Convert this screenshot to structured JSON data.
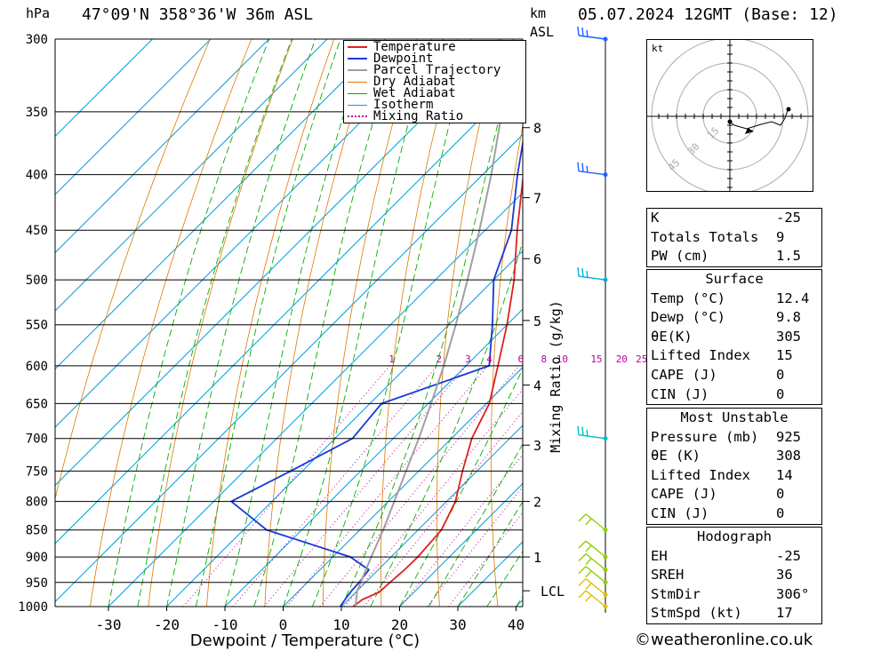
{
  "header": {
    "location": "47°09'N 358°36'W 36m ASL",
    "datetime": "05.07.2024 12GMT (Base: 12)",
    "hpa_unit": "hPa",
    "km_unit": "km",
    "asl_unit": "ASL"
  },
  "legend": [
    {
      "label": "Temperature",
      "color": "#e02020",
      "style": "solid"
    },
    {
      "label": "Dewpoint",
      "color": "#1838d8",
      "style": "solid"
    },
    {
      "label": "Parcel Trajectory",
      "color": "#a0a0a0",
      "style": "solid"
    },
    {
      "label": "Dry Adiabat",
      "color": "#e07800",
      "style": "solid"
    },
    {
      "label": "Wet Adiabat",
      "color": "#00b000",
      "style": "solid"
    },
    {
      "label": "Isotherm",
      "color": "#00a0e0",
      "style": "solid"
    },
    {
      "label": "Mixing Ratio",
      "color": "#c000a0",
      "style": "dotted"
    }
  ],
  "chart_data": {
    "type": "line",
    "subtype": "skew-t log-p",
    "xlabel": "Dewpoint / Temperature (°C)",
    "ylabel": "hPa",
    "secondary_ylabel": "Mixing Ratio (g/kg)",
    "xlim": [
      -40,
      40
    ],
    "ylim": [
      1000,
      300
    ],
    "x_ticks": [
      -30,
      -20,
      -10,
      0,
      10,
      20,
      30,
      40
    ],
    "pressure_ticks": [
      300,
      350,
      400,
      450,
      500,
      550,
      600,
      650,
      700,
      750,
      800,
      850,
      900,
      950,
      1000
    ],
    "km_ticks": [
      {
        "km": 1,
        "p": 900
      },
      {
        "km": 2,
        "p": 800
      },
      {
        "km": 3,
        "p": 710
      },
      {
        "km": 4,
        "p": 625
      },
      {
        "km": 5,
        "p": 545
      },
      {
        "km": 6,
        "p": 478
      },
      {
        "km": 7,
        "p": 420
      },
      {
        "km": 8,
        "p": 362
      }
    ],
    "lcl_label": "LCL",
    "lcl_pressure": 967,
    "mixing_ratio_labels": [
      "1",
      "2",
      "3",
      "4",
      "6",
      "8",
      "10",
      "15",
      "20",
      "25"
    ],
    "mixing_ratio_label_pressure": 600,
    "series": [
      {
        "name": "Temperature",
        "color": "#e02020",
        "points": [
          {
            "p": 1000,
            "t": 12.0
          },
          {
            "p": 985,
            "t": 12.4
          },
          {
            "p": 970,
            "t": 14.0
          },
          {
            "p": 950,
            "t": 14.2
          },
          {
            "p": 925,
            "t": 14.5
          },
          {
            "p": 900,
            "t": 14.6
          },
          {
            "p": 850,
            "t": 14.0
          },
          {
            "p": 800,
            "t": 11.5
          },
          {
            "p": 750,
            "t": 7.5
          },
          {
            "p": 700,
            "t": 3.5
          },
          {
            "p": 650,
            "t": 0.5
          },
          {
            "p": 600,
            "t": -4.5
          },
          {
            "p": 550,
            "t": -10.0
          },
          {
            "p": 500,
            "t": -16.5
          },
          {
            "p": 450,
            "t": -24.5
          },
          {
            "p": 400,
            "t": -33.0
          }
        ]
      },
      {
        "name": "Dewpoint",
        "color": "#1838d8",
        "points": [
          {
            "p": 1000,
            "t": 9.8
          },
          {
            "p": 985,
            "t": 9.4
          },
          {
            "p": 965,
            "t": 9.0
          },
          {
            "p": 950,
            "t": 8.9
          },
          {
            "p": 925,
            "t": 8.4
          },
          {
            "p": 900,
            "t": 3.0
          },
          {
            "p": 850,
            "t": -16.0
          },
          {
            "p": 800,
            "t": -27.0
          },
          {
            "p": 750,
            "t": -22.0
          },
          {
            "p": 700,
            "t": -17.0
          },
          {
            "p": 650,
            "t": -18.0
          },
          {
            "p": 600,
            "t": -6.0
          },
          {
            "p": 550,
            "t": -12.5
          },
          {
            "p": 500,
            "t": -20.0
          },
          {
            "p": 450,
            "t": -25.5
          },
          {
            "p": 400,
            "t": -34.0
          },
          {
            "p": 350,
            "t": -43.0
          },
          {
            "p": 300,
            "t": -53.0
          }
        ]
      },
      {
        "name": "Parcel Trajectory",
        "color": "#a0a0a0",
        "points": [
          {
            "p": 1000,
            "t": 12.4
          },
          {
            "p": 967,
            "t": 10.0
          },
          {
            "p": 900,
            "t": 6.6
          },
          {
            "p": 850,
            "t": 4.0
          },
          {
            "p": 800,
            "t": 1.0
          },
          {
            "p": 750,
            "t": -2.2
          },
          {
            "p": 700,
            "t": -5.6
          },
          {
            "p": 650,
            "t": -9.5
          },
          {
            "p": 600,
            "t": -13.8
          },
          {
            "p": 550,
            "t": -18.8
          },
          {
            "p": 500,
            "t": -24.5
          },
          {
            "p": 450,
            "t": -31.0
          },
          {
            "p": 400,
            "t": -38.5
          },
          {
            "p": 350,
            "t": -47.5
          },
          {
            "p": 300,
            "t": -58.0
          }
        ]
      }
    ],
    "wind_barb_pressures": [
      1000,
      975,
      950,
      925,
      900,
      850,
      700,
      500,
      400,
      300
    ]
  },
  "hodograph": {
    "unit_label": "kt",
    "ring_labels": [
      "15",
      "30",
      "45"
    ]
  },
  "indices": {
    "rows": [
      {
        "label": "K",
        "value": "-25"
      },
      {
        "label": "Totals Totals",
        "value": "9"
      },
      {
        "label": "PW (cm)",
        "value": "1.5"
      }
    ]
  },
  "surface": {
    "title": "Surface",
    "rows": [
      {
        "label": "Temp (°C)",
        "value": "12.4"
      },
      {
        "label": "Dewp (°C)",
        "value": "9.8"
      },
      {
        "label": "θE(K)",
        "value": "305"
      },
      {
        "label": "Lifted Index",
        "value": "15"
      },
      {
        "label": "CAPE (J)",
        "value": "0"
      },
      {
        "label": "CIN (J)",
        "value": "0"
      }
    ]
  },
  "most_unstable": {
    "title": "Most Unstable",
    "rows": [
      {
        "label": "Pressure (mb)",
        "value": "925"
      },
      {
        "label": "θE (K)",
        "value": "308"
      },
      {
        "label": "Lifted Index",
        "value": "14"
      },
      {
        "label": "CAPE (J)",
        "value": "0"
      },
      {
        "label": "CIN (J)",
        "value": "0"
      }
    ]
  },
  "hodograph_table": {
    "title": "Hodograph",
    "rows": [
      {
        "label": "EH",
        "value": "-25"
      },
      {
        "label": "SREH",
        "value": "36"
      },
      {
        "label": "StmDir",
        "value": "306°"
      },
      {
        "label": "StmSpd (kt)",
        "value": "17"
      }
    ]
  },
  "footer": {
    "copyright_symbol": "©",
    "site": "weatheronline.co.uk"
  }
}
